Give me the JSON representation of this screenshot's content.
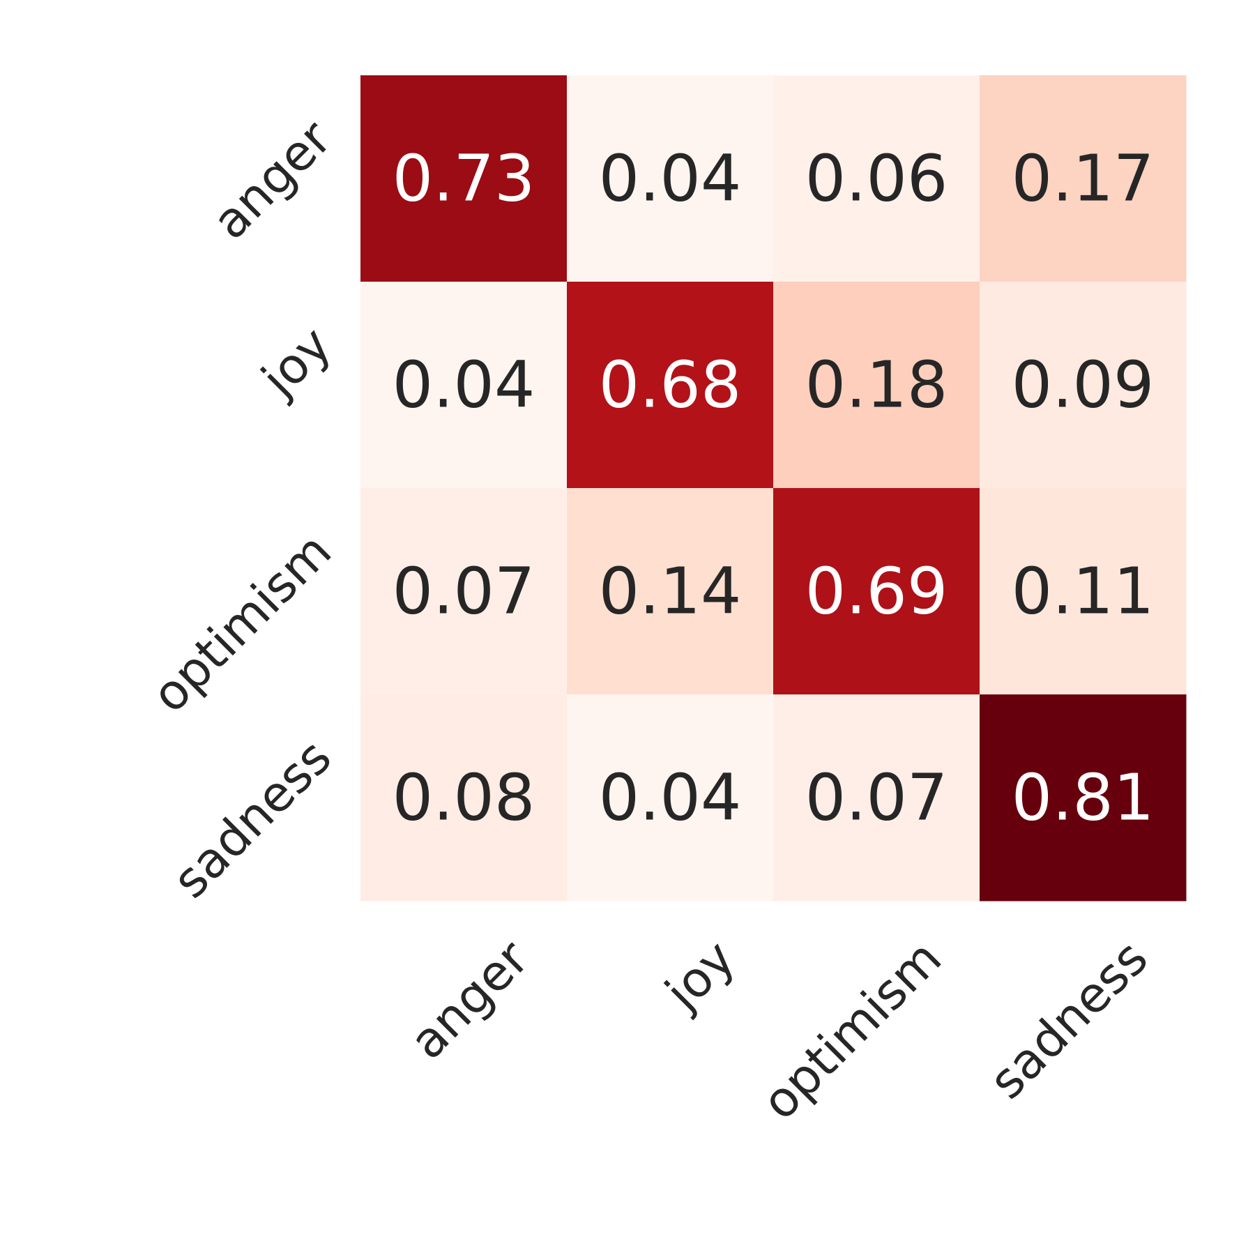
{
  "chart_data": {
    "type": "heatmap",
    "x_categories": [
      "anger",
      "joy",
      "optimism",
      "sadness"
    ],
    "y_categories": [
      "anger",
      "joy",
      "optimism",
      "sadness"
    ],
    "values": [
      [
        0.73,
        0.04,
        0.06,
        0.17
      ],
      [
        0.04,
        0.68,
        0.18,
        0.09
      ],
      [
        0.07,
        0.14,
        0.69,
        0.11
      ],
      [
        0.08,
        0.04,
        0.07,
        0.81
      ]
    ],
    "colormap": "Reds"
  }
}
